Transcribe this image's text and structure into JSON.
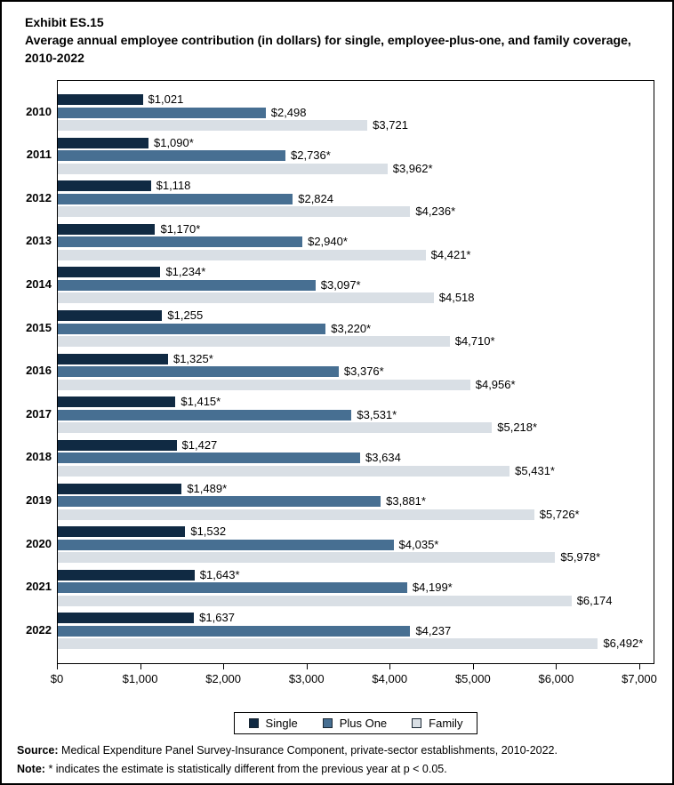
{
  "header": {
    "exhibit": "Exhibit ES.15",
    "title": "Average annual employee contribution (in dollars) for single, employee-plus-one, and family coverage, 2010-2022"
  },
  "chart_data": {
    "type": "bar",
    "orientation": "horizontal",
    "title": "Average annual employee contribution (in dollars) for single, employee-plus-one, and family coverage, 2010-2022",
    "xlabel": "",
    "ylabel": "",
    "xlim": [
      0,
      7000
    ],
    "x_ticks": [
      "$0",
      "$1,000",
      "$2,000",
      "$3,000",
      "$4,000",
      "$5,000",
      "$6,000",
      "$7,000"
    ],
    "grid": false,
    "legend_position": "bottom",
    "categories": [
      "2010",
      "2011",
      "2012",
      "2013",
      "2014",
      "2015",
      "2016",
      "2017",
      "2018",
      "2019",
      "2020",
      "2021",
      "2022"
    ],
    "series": [
      {
        "name": "Single",
        "color": "#102a43",
        "values": [
          1021,
          1090,
          1118,
          1170,
          1234,
          1255,
          1325,
          1415,
          1427,
          1489,
          1532,
          1643,
          1637
        ],
        "labels": [
          "$1,021",
          "$1,090*",
          "$1,118",
          "$1,170*",
          "$1,234*",
          "$1,255",
          "$1,325*",
          "$1,415*",
          "$1,427",
          "$1,489*",
          "$1,532",
          "$1,643*",
          "$1,637"
        ]
      },
      {
        "name": "Plus One",
        "color": "#476f92",
        "values": [
          2498,
          2736,
          2824,
          2940,
          3097,
          3220,
          3376,
          3531,
          3634,
          3881,
          4035,
          4199,
          4237
        ],
        "labels": [
          "$2,498",
          "$2,736*",
          "$2,824",
          "$2,940*",
          "$3,097*",
          "$3,220*",
          "$3,376*",
          "$3,531*",
          "$3,634",
          "$3,881*",
          "$4,035*",
          "$4,199*",
          "$4,237"
        ]
      },
      {
        "name": "Family",
        "color": "#d9dfe5",
        "values": [
          3721,
          3962,
          4236,
          4421,
          4518,
          4710,
          4956,
          5218,
          5431,
          5726,
          5978,
          6174,
          6492
        ],
        "labels": [
          "$3,721",
          "$3,962*",
          "$4,236*",
          "$4,421*",
          "$4,518",
          "$4,710*",
          "$4,956*",
          "$5,218*",
          "$5,431*",
          "$5,726*",
          "$5,978*",
          "$6,174",
          "$6,492*"
        ]
      }
    ]
  },
  "footer": {
    "source_label": "Source:",
    "source_text": "Medical Expenditure Panel Survey-Insurance Component, private-sector establishments, 2010-2022.",
    "note_label": "Note:",
    "note_text": "* indicates the estimate is statistically different from the previous year at p < 0.05."
  }
}
